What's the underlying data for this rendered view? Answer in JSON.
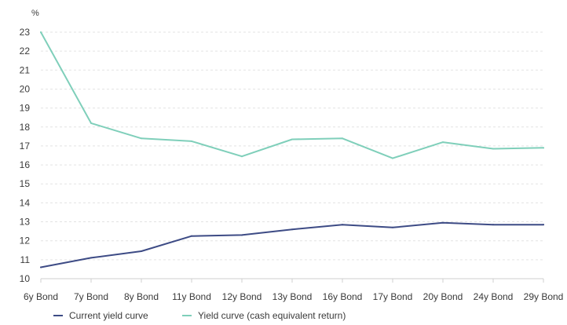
{
  "chart_data": {
    "type": "line",
    "title": "",
    "xlabel": "",
    "ylabel": "%",
    "ylim": [
      10,
      23
    ],
    "yticks": [
      10,
      11,
      12,
      13,
      14,
      15,
      16,
      17,
      18,
      19,
      20,
      21,
      22,
      23
    ],
    "grid": true,
    "legend": "bottom-left",
    "categories": [
      "6y Bond",
      "7y Bond",
      "8y Bond",
      "11y Bond",
      "12y Bond",
      "13y Bond",
      "16y Bond",
      "17y Bond",
      "20y Bond",
      "24y Bond",
      "29y Bond"
    ],
    "series": [
      {
        "name": "Current yield curve",
        "color": "#3d4b85",
        "values": [
          10.6,
          11.1,
          11.45,
          12.25,
          12.3,
          12.6,
          12.85,
          12.7,
          12.95,
          12.85,
          12.85
        ]
      },
      {
        "name": "Yield curve (cash equivalent return)",
        "color": "#7fcfba",
        "values": [
          23.0,
          18.2,
          17.4,
          17.25,
          16.45,
          17.35,
          17.4,
          16.35,
          17.2,
          16.85,
          16.9
        ]
      }
    ]
  }
}
